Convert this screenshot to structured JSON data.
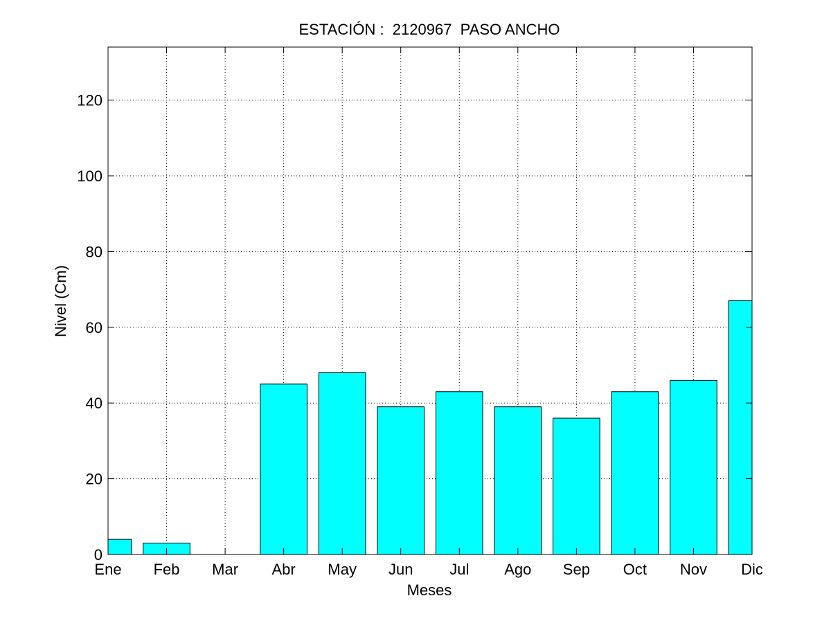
{
  "chart_data": {
    "type": "bar",
    "title": "ESTACIÓN :  2120967  PASO ANCHO",
    "xlabel": "Meses",
    "ylabel": "Nivel (Cm)",
    "categories": [
      "Ene",
      "Feb",
      "Mar",
      "Abr",
      "May",
      "Jun",
      "Jul",
      "Ago",
      "Sep",
      "Oct",
      "Nov",
      "Dic"
    ],
    "values": [
      4,
      3,
      0,
      45,
      48,
      39,
      43,
      39,
      36,
      43,
      46,
      67
    ],
    "ylim": [
      0,
      134
    ],
    "yticks": [
      0,
      20,
      40,
      60,
      80,
      100,
      120
    ],
    "grid": true,
    "bar_color": "#00ffff",
    "bar_edge_color": "#000000"
  }
}
